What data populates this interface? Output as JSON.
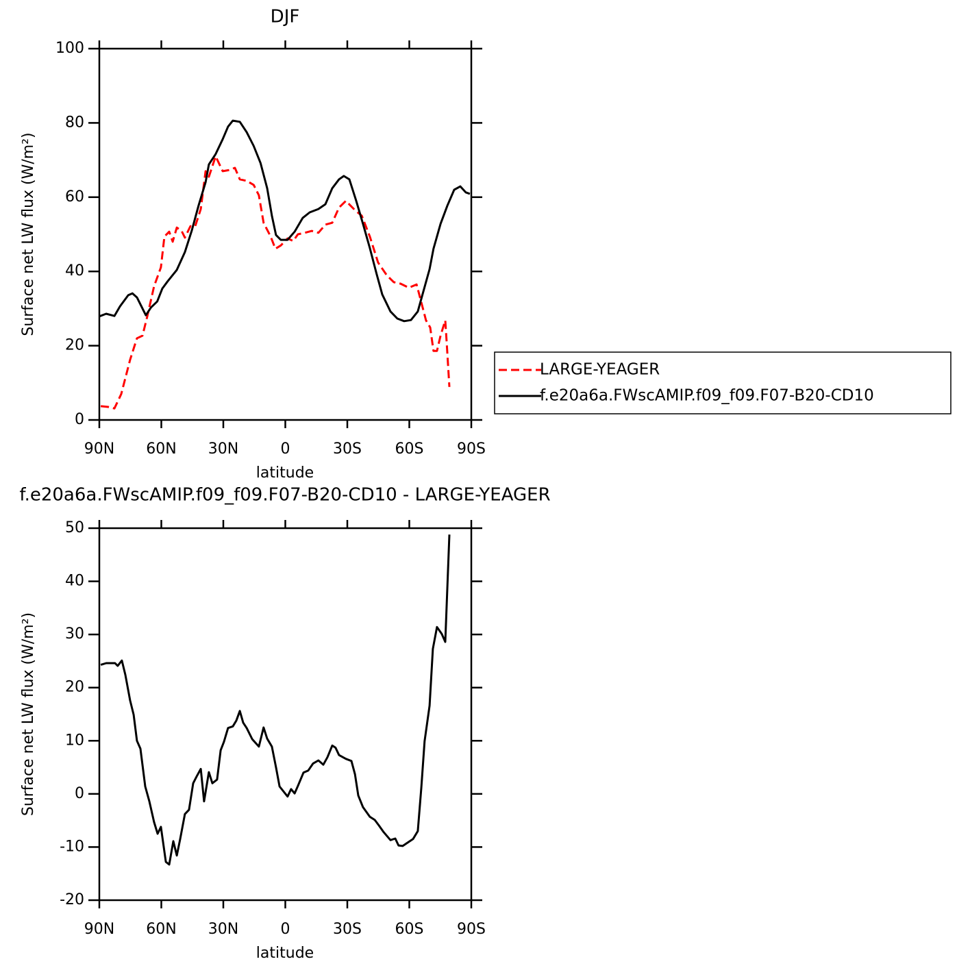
{
  "chart_data": [
    {
      "type": "line",
      "title": "DJF",
      "xlabel": "latitude",
      "ylabel": "Surface net LW flux (W/m²)",
      "xlim": [
        90,
        -90
      ],
      "xticks": [
        {
          "value": 90,
          "label": "90N"
        },
        {
          "value": 60,
          "label": "60N"
        },
        {
          "value": 30,
          "label": "30N"
        },
        0,
        {
          "value": -30,
          "label": "30S"
        },
        {
          "value": -60,
          "label": "60S"
        },
        {
          "value": -90,
          "label": "90S"
        }
      ],
      "ylim": [
        0,
        100
      ],
      "yticks": [
        0,
        20,
        40,
        60,
        80,
        100
      ],
      "legend": "right",
      "series": [
        {
          "name": "LARGE-YEAGER",
          "color": "#ff0000",
          "dash": "dashed",
          "x": [
            89.3,
            85.7,
            82.7,
            79.4,
            75.1,
            71.8,
            69.1,
            66.8,
            63.5,
            60.2,
            58.5,
            56.2,
            54.5,
            52.5,
            50.2,
            48.6,
            45.9,
            43.6,
            40.9,
            38.6,
            37,
            33.7,
            30.3,
            27,
            24.4,
            22,
            18.7,
            15.3,
            12.8,
            10.5,
            7.1,
            4.8,
            2.2,
            -1.1,
            -3.8,
            -6.1,
            -9.4,
            -12.8,
            -16,
            -19.4,
            -22.7,
            -26,
            -29.3,
            -33.7,
            -37,
            -40.9,
            -44.9,
            -49.2,
            -52.5,
            -55.8,
            -59.8,
            -63.5,
            -64.8,
            -68.1,
            -70.1,
            -71.7,
            -73.4,
            -75.1,
            -77.4,
            -78.1,
            -79.4
          ],
          "values": [
            3.7,
            3.5,
            3.1,
            7,
            16.2,
            22,
            22.7,
            27.9,
            36,
            41.1,
            49.4,
            50.7,
            48,
            51.8,
            50.9,
            49.1,
            52.2,
            52.2,
            56.8,
            67,
            65.5,
            71,
            67,
            67.3,
            67.9,
            64.8,
            64.4,
            63.3,
            60.5,
            53.1,
            49.4,
            46.1,
            47,
            48.9,
            48.2,
            50,
            50.4,
            50.9,
            50.4,
            52.6,
            53.1,
            57.2,
            59,
            56.5,
            55,
            49.4,
            42.4,
            38.9,
            37.1,
            36.7,
            35.6,
            36.5,
            33.8,
            26.8,
            24.9,
            18.6,
            18.6,
            22.7,
            26.8,
            20.8,
            8.9
          ]
        },
        {
          "name": "f.e20a6a.FWscAMIP.f09_f09.F07-B20-CD10",
          "color": "#000000",
          "dash": "solid",
          "x": [
            90,
            86.7,
            82.7,
            80,
            76,
            74,
            71.8,
            67.5,
            65,
            62,
            59.5,
            57,
            52.5,
            48.6,
            45.3,
            42,
            38.6,
            37,
            33.7,
            30.3,
            27.7,
            25.4,
            22,
            18.7,
            15.3,
            12,
            8.8,
            6.5,
            4.5,
            2.2,
            -1.1,
            -4.5,
            -8.4,
            -11.8,
            -16,
            -19.4,
            -22.7,
            -26,
            -28.3,
            -31,
            -34.3,
            -37.6,
            -40.9,
            -44.2,
            -46.9,
            -50.9,
            -54.2,
            -57.5,
            -60.8,
            -64.1,
            -66.4,
            -69.8,
            -71.7,
            -75.1,
            -78.4,
            -81.7,
            -84.7,
            -87.3,
            -89.3
          ],
          "values": [
            27.9,
            28.6,
            28,
            30.6,
            33.6,
            34.1,
            33,
            28.2,
            30.3,
            31.9,
            35.4,
            37.3,
            40.4,
            45.2,
            50.9,
            57.7,
            64,
            68.8,
            71.6,
            75.6,
            79,
            80.6,
            80.3,
            77.5,
            73.8,
            69.2,
            62.4,
            55,
            49.8,
            48.5,
            48.5,
            50.7,
            54.4,
            55.9,
            56.8,
            58.1,
            62.4,
            64.8,
            65.7,
            64.8,
            59,
            52.8,
            46.3,
            39.3,
            33.8,
            29.2,
            27.3,
            26.6,
            26.9,
            29.2,
            33.8,
            40.6,
            46.1,
            52.8,
            57.7,
            62,
            62.9,
            61.3,
            60.9
          ]
        }
      ]
    },
    {
      "type": "line",
      "title": "f.e20a6a.FWscAMIP.f09_f09.F07-B20-CD10 - LARGE-YEAGER",
      "xlabel": "latitude",
      "ylabel": "Surface net LW flux (W/m²)",
      "xlim": [
        90,
        -90
      ],
      "xticks": [
        {
          "value": 90,
          "label": "90N"
        },
        {
          "value": 60,
          "label": "60N"
        },
        {
          "value": 30,
          "label": "30N"
        },
        0,
        {
          "value": -30,
          "label": "30S"
        },
        {
          "value": -60,
          "label": "60S"
        },
        {
          "value": -90,
          "label": "90S"
        }
      ],
      "ylim": [
        -20,
        50
      ],
      "yticks": [
        -20,
        -10,
        0,
        10,
        20,
        30,
        40,
        50
      ],
      "series": [
        {
          "color": "#000000",
          "dash": "solid",
          "x": [
            89.3,
            86.7,
            82.4,
            81.1,
            79.1,
            77.4,
            75.1,
            73.4,
            71.8,
            70.1,
            67.8,
            65.8,
            63.5,
            61.8,
            60.2,
            57.8,
            56.2,
            54.2,
            52.5,
            50.9,
            48.6,
            46.6,
            44.6,
            42.9,
            40.9,
            39.3,
            37,
            35.3,
            33,
            31.3,
            29.7,
            27.7,
            25.4,
            23.7,
            22,
            20.4,
            18.7,
            16,
            12.8,
            10.5,
            8.8,
            6.5,
            4.5,
            2.8,
            -1.1,
            -2.8,
            -4.5,
            -6.1,
            -8.8,
            -11.1,
            -13.4,
            -16,
            -18.4,
            -20.4,
            -22.7,
            -24.3,
            -26,
            -29.3,
            -32,
            -33.7,
            -35.3,
            -37.6,
            -40.9,
            -43.3,
            -45.2,
            -47.6,
            -50.9,
            -53.2,
            -54.8,
            -56.8,
            -59.8,
            -61.8,
            -64.1,
            -65.8,
            -67.4,
            -69.8,
            -71.4,
            -73.4,
            -75.7,
            -77.4,
            -79.4
          ],
          "values": [
            24.3,
            24.6,
            24.6,
            24.1,
            25.1,
            22.4,
            17.6,
            14.9,
            10,
            8.5,
            1.4,
            -1.4,
            -5.3,
            -7.5,
            -6.2,
            -12.8,
            -13.3,
            -8.9,
            -11.6,
            -8.5,
            -3.8,
            -3,
            2,
            3.3,
            4.7,
            -1.4,
            4.1,
            2,
            2.7,
            8.2,
            9.8,
            12.4,
            12.7,
            13.8,
            15.6,
            13.4,
            12.4,
            10.3,
            8.9,
            12.5,
            10.4,
            8.9,
            5,
            1.4,
            -0.5,
            0.9,
            0.1,
            1.5,
            4,
            4.4,
            5.7,
            6.3,
            5.5,
            6.9,
            9.1,
            8.7,
            7.3,
            6.6,
            6.2,
            3.7,
            -0.3,
            -2.5,
            -4.3,
            -4.9,
            -5.9,
            -7.2,
            -8.7,
            -8.4,
            -9.7,
            -9.8,
            -9,
            -8.5,
            -7,
            1.1,
            9.9,
            16.6,
            27.3,
            31.4,
            30.1,
            28.6,
            48.8
          ]
        }
      ]
    }
  ]
}
